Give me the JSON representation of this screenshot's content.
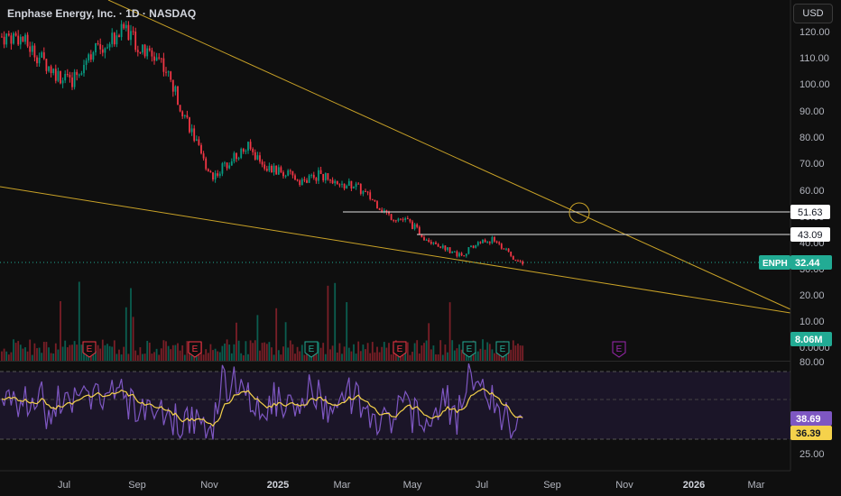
{
  "header": {
    "title": "Enphase Energy, Inc. · 1D · NASDAQ",
    "currency": "USD"
  },
  "colors": {
    "background": "#0f0f0f",
    "up": "#089981",
    "down": "#f23645",
    "trendline": "#c9a227",
    "rsi_line": "#7e57c2",
    "rsi_ma": "#f5d24b",
    "price_label": "#22ab94"
  },
  "price_axis": {
    "ticks": [
      "120.00",
      "110.00",
      "100.00",
      "90.00",
      "80.00",
      "70.00",
      "60.00",
      "50.00",
      "40.00",
      "30.00",
      "20.00",
      "10.00",
      "0.0000"
    ],
    "tags": [
      {
        "name": "level-51-63",
        "text": "51.63",
        "style": "white"
      },
      {
        "name": "level-43-09",
        "text": "43.09",
        "style": "white"
      },
      {
        "name": "enph-price",
        "text": "32.44",
        "symbol": "ENPH",
        "style": "green"
      },
      {
        "name": "volume",
        "text": "8.06M",
        "style": "green"
      }
    ]
  },
  "rsi_axis": {
    "ticks": [
      "80.00",
      "25.00"
    ],
    "tags": [
      {
        "name": "rsi-value",
        "text": "38.69",
        "style": "purple"
      },
      {
        "name": "rsi-ma-value",
        "text": "36.39",
        "style": "yellow"
      }
    ]
  },
  "time_axis": {
    "labels": [
      {
        "text": "Jul",
        "bold": false
      },
      {
        "text": "Sep",
        "bold": false
      },
      {
        "text": "Nov",
        "bold": false
      },
      {
        "text": "2025",
        "bold": true
      },
      {
        "text": "Mar",
        "bold": false
      },
      {
        "text": "May",
        "bold": false
      },
      {
        "text": "Jul",
        "bold": false
      },
      {
        "text": "Sep",
        "bold": false
      },
      {
        "text": "Nov",
        "bold": false
      },
      {
        "text": "2026",
        "bold": true
      },
      {
        "text": "Mar",
        "bold": false
      }
    ]
  },
  "earnings_markers": [
    {
      "letter": "E",
      "kind": "miss"
    },
    {
      "letter": "E",
      "kind": "miss"
    },
    {
      "letter": "E",
      "kind": "beat"
    },
    {
      "letter": "E",
      "kind": "miss"
    },
    {
      "letter": "E",
      "kind": "beat"
    },
    {
      "letter": "E",
      "kind": "beat"
    },
    {
      "letter": "E",
      "kind": "upcoming"
    }
  ],
  "chart_data": {
    "type": "candlestick",
    "symbol": "ENPH",
    "horizontal_levels": [
      51.63,
      43.09
    ],
    "last_price": 32.44,
    "last_volume": "8.06M",
    "rsi": {
      "value": 38.69,
      "ma": 36.39
    },
    "price_series": [
      [
        "2024-06-01",
        118
      ],
      [
        "2024-06-15",
        112
      ],
      [
        "2024-07-01",
        105
      ],
      [
        "2024-07-15",
        100
      ],
      [
        "2024-08-01",
        112
      ],
      [
        "2024-08-15",
        115
      ],
      [
        "2024-09-01",
        122
      ],
      [
        "2024-09-15",
        112
      ],
      [
        "2024-10-01",
        110
      ],
      [
        "2024-10-15",
        95
      ],
      [
        "2024-10-25",
        85
      ],
      [
        "2024-11-05",
        72
      ],
      [
        "2024-11-15",
        65
      ],
      [
        "2024-12-01",
        72
      ],
      [
        "2024-12-15",
        76
      ],
      [
        "2025-01-01",
        68
      ],
      [
        "2025-01-15",
        66
      ],
      [
        "2025-02-01",
        63
      ],
      [
        "2025-02-15",
        66
      ],
      [
        "2025-03-01",
        61
      ],
      [
        "2025-03-15",
        62
      ],
      [
        "2025-04-01",
        56
      ],
      [
        "2025-04-15",
        50
      ],
      [
        "2025-05-01",
        48
      ],
      [
        "2025-05-15",
        42
      ],
      [
        "2025-06-01",
        38
      ],
      [
        "2025-06-15",
        35
      ],
      [
        "2025-07-01",
        40
      ],
      [
        "2025-07-15",
        41
      ],
      [
        "2025-08-01",
        33
      ],
      [
        "2025-08-07",
        32.44
      ]
    ]
  }
}
